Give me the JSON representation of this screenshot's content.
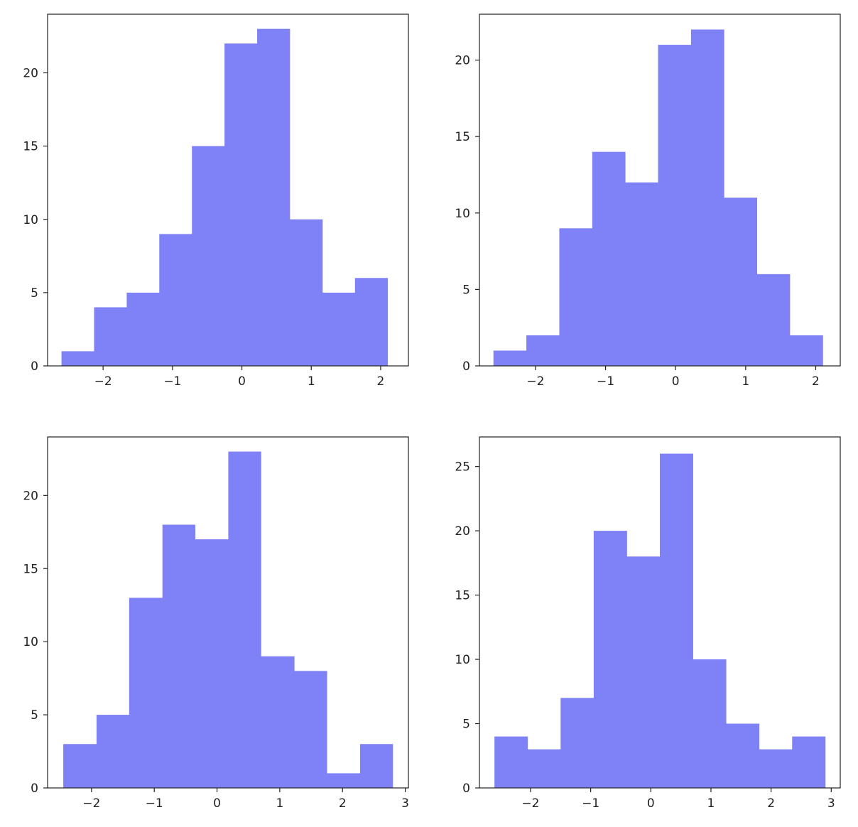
{
  "colors": {
    "bar_fill": "#7f82f6",
    "axes": "#222222",
    "background": "#ffffff"
  },
  "chart_data": [
    {
      "type": "bar",
      "subtype": "histogram",
      "bin_edges": [
        -2.6,
        -2.13,
        -1.66,
        -1.19,
        -0.72,
        -0.25,
        0.22,
        0.69,
        1.16,
        1.63,
        2.1
      ],
      "values": [
        1,
        4,
        5,
        9,
        15,
        22,
        23,
        10,
        5,
        6
      ],
      "xlim": [
        -2.8,
        2.4
      ],
      "ylim": [
        0,
        24
      ],
      "xticks": [
        -2,
        -1,
        0,
        1,
        2
      ],
      "xtick_labels": [
        "−2",
        "−1",
        "0",
        "1",
        "2"
      ],
      "yticks": [
        0,
        5,
        10,
        15,
        20
      ],
      "ytick_labels": [
        "0",
        "5",
        "10",
        "15",
        "20"
      ],
      "grid": false
    },
    {
      "type": "bar",
      "subtype": "histogram",
      "bin_edges": [
        -2.6,
        -2.13,
        -1.66,
        -1.19,
        -0.72,
        -0.25,
        0.22,
        0.69,
        1.16,
        1.63,
        2.1
      ],
      "values": [
        1,
        2,
        9,
        14,
        12,
        21,
        22,
        11,
        6,
        2
      ],
      "xlim": [
        -2.8,
        2.35
      ],
      "ylim": [
        0,
        23
      ],
      "xticks": [
        -2,
        -1,
        0,
        1,
        2
      ],
      "xtick_labels": [
        "−2",
        "−1",
        "0",
        "1",
        "2"
      ],
      "yticks": [
        0,
        5,
        10,
        15,
        20
      ],
      "ytick_labels": [
        "0",
        "5",
        "10",
        "15",
        "20"
      ],
      "grid": false
    },
    {
      "type": "bar",
      "subtype": "histogram",
      "bin_edges": [
        -2.45,
        -1.92,
        -1.4,
        -0.87,
        -0.35,
        0.18,
        0.7,
        1.23,
        1.75,
        2.28,
        2.8
      ],
      "values": [
        3,
        5,
        13,
        18,
        17,
        23,
        9,
        8,
        1,
        3
      ],
      "xlim": [
        -2.7,
        3.05
      ],
      "ylim": [
        0,
        24
      ],
      "xticks": [
        -2,
        -1,
        0,
        1,
        2,
        3
      ],
      "xtick_labels": [
        "−2",
        "−1",
        "0",
        "1",
        "2",
        "3"
      ],
      "yticks": [
        0,
        5,
        10,
        15,
        20
      ],
      "ytick_labels": [
        "0",
        "5",
        "10",
        "15",
        "20"
      ],
      "grid": false
    },
    {
      "type": "bar",
      "subtype": "histogram",
      "bin_edges": [
        -2.6,
        -2.05,
        -1.5,
        -0.95,
        -0.4,
        0.15,
        0.7,
        1.25,
        1.8,
        2.35,
        2.9
      ],
      "values": [
        4,
        3,
        7,
        20,
        18,
        26,
        10,
        5,
        3,
        4
      ],
      "xlim": [
        -2.85,
        3.15
      ],
      "ylim": [
        0,
        27.3
      ],
      "xticks": [
        -2,
        -1,
        0,
        1,
        2,
        3
      ],
      "xtick_labels": [
        "−2",
        "−1",
        "0",
        "1",
        "2",
        "3"
      ],
      "yticks": [
        0,
        5,
        10,
        15,
        20,
        25
      ],
      "ytick_labels": [
        "0",
        "5",
        "10",
        "15",
        "20",
        "25"
      ],
      "grid": false
    }
  ]
}
